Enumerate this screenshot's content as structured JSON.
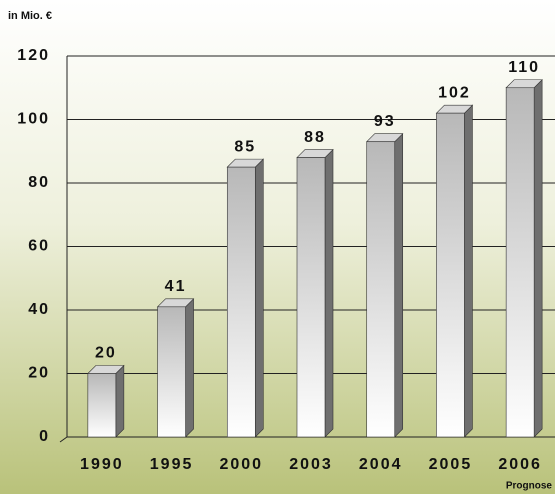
{
  "chart_data": {
    "type": "bar3d",
    "unit_label": "in Mio. €",
    "note": "Prognose",
    "categories": [
      "1990",
      "1995",
      "2000",
      "2003",
      "2004",
      "2005",
      "2006"
    ],
    "values": [
      20,
      41,
      85,
      88,
      93,
      102,
      110
    ],
    "ylim": [
      0,
      120
    ],
    "yticks": [
      0,
      20,
      40,
      60,
      80,
      100,
      120
    ],
    "grid": true
  }
}
